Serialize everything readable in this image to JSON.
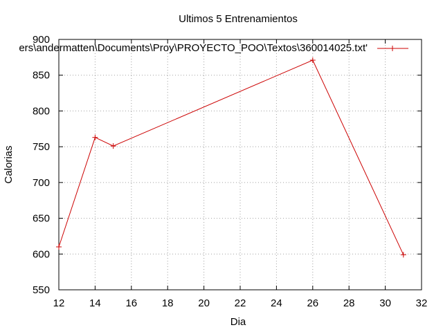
{
  "chart_data": {
    "type": "line",
    "title": "Ultimos 5 Entrenamientos",
    "xlabel": "Dia",
    "ylabel": "Calorias",
    "xlim": [
      12,
      32
    ],
    "ylim": [
      550,
      900
    ],
    "x_ticks": [
      12,
      14,
      16,
      18,
      20,
      22,
      24,
      26,
      28,
      30,
      32
    ],
    "y_ticks": [
      550,
      600,
      650,
      700,
      750,
      800,
      850,
      900
    ],
    "grid": true,
    "legend_position": "top-right",
    "series": [
      {
        "name": "ers\\andermatten\\Documents\\Proy\\PROYECTO_POO\\Textos\\360014025.txt'",
        "color": "#cc0000",
        "marker": "plus",
        "x": [
          12,
          14,
          15,
          26,
          31
        ],
        "y": [
          610,
          763,
          751,
          871,
          599
        ]
      }
    ]
  }
}
